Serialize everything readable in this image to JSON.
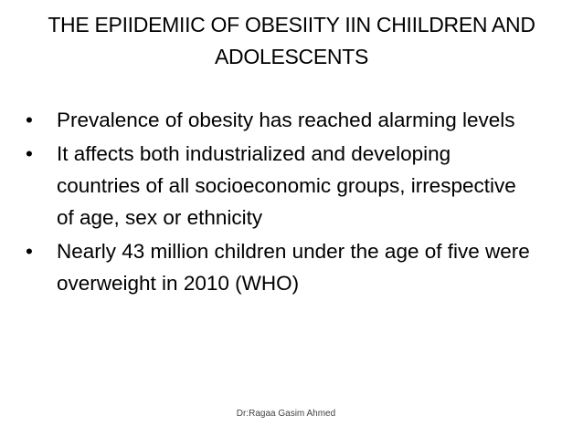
{
  "header": {
    "title": "THE EPIIDEMIIC OF OBESIITY IIN CHIILDREN AND ADOLESCENTS"
  },
  "bullets": [
    "Prevalence of obesity has reached alarming levels",
    "It affects both industrialized and developing countries of all socioeconomic groups, irrespective of age, sex or ethnicity",
    "Nearly 43 million children under the age of five were overweight in 2010 (WHO)"
  ],
  "footer": "Dr:Ragaa Gasim Ahmed"
}
